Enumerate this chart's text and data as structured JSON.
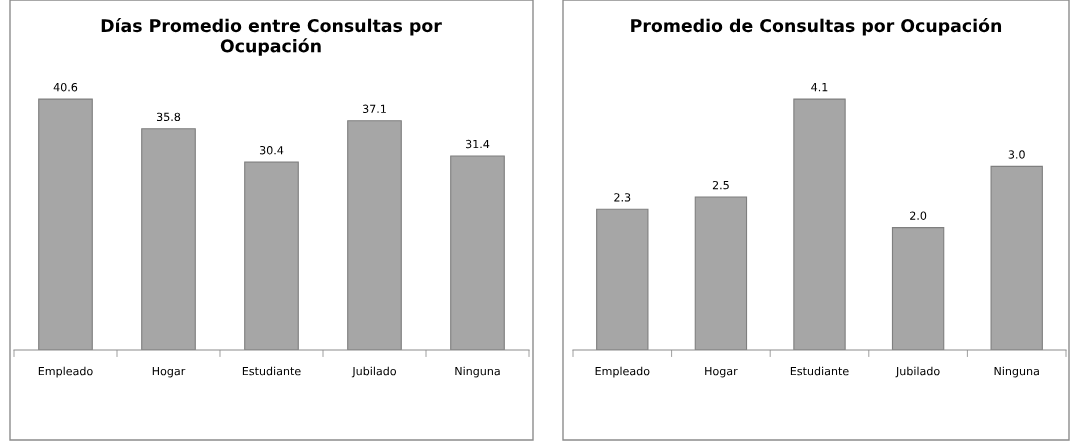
{
  "chart_data": [
    {
      "type": "bar",
      "title": "Días Promedio entre Consultas por Ocupación",
      "categories": [
        "Empleado",
        "Hogar",
        "Estudiante",
        "Jubilado",
        "Ninguna"
      ],
      "values": [
        40.6,
        35.8,
        30.4,
        37.1,
        31.4
      ],
      "value_labels": [
        "40.6",
        "35.8",
        "30.4",
        "37.1",
        "31.4"
      ],
      "color": "#a6a6a6",
      "tick_labels": "x",
      "grid": false
    },
    {
      "type": "bar",
      "title": "Promedio de Consultas por Ocupación",
      "categories": [
        "Empleado",
        "Hogar",
        "Estudiante",
        "Jubilado",
        "Ninguna"
      ],
      "values": [
        2.3,
        2.5,
        4.1,
        2.0,
        3.0
      ],
      "value_labels": [
        "2.3",
        "2.5",
        "4.1",
        "2.0",
        "3.0"
      ],
      "color": "#a6a6a6",
      "tick_labels": "x",
      "grid": false
    }
  ]
}
